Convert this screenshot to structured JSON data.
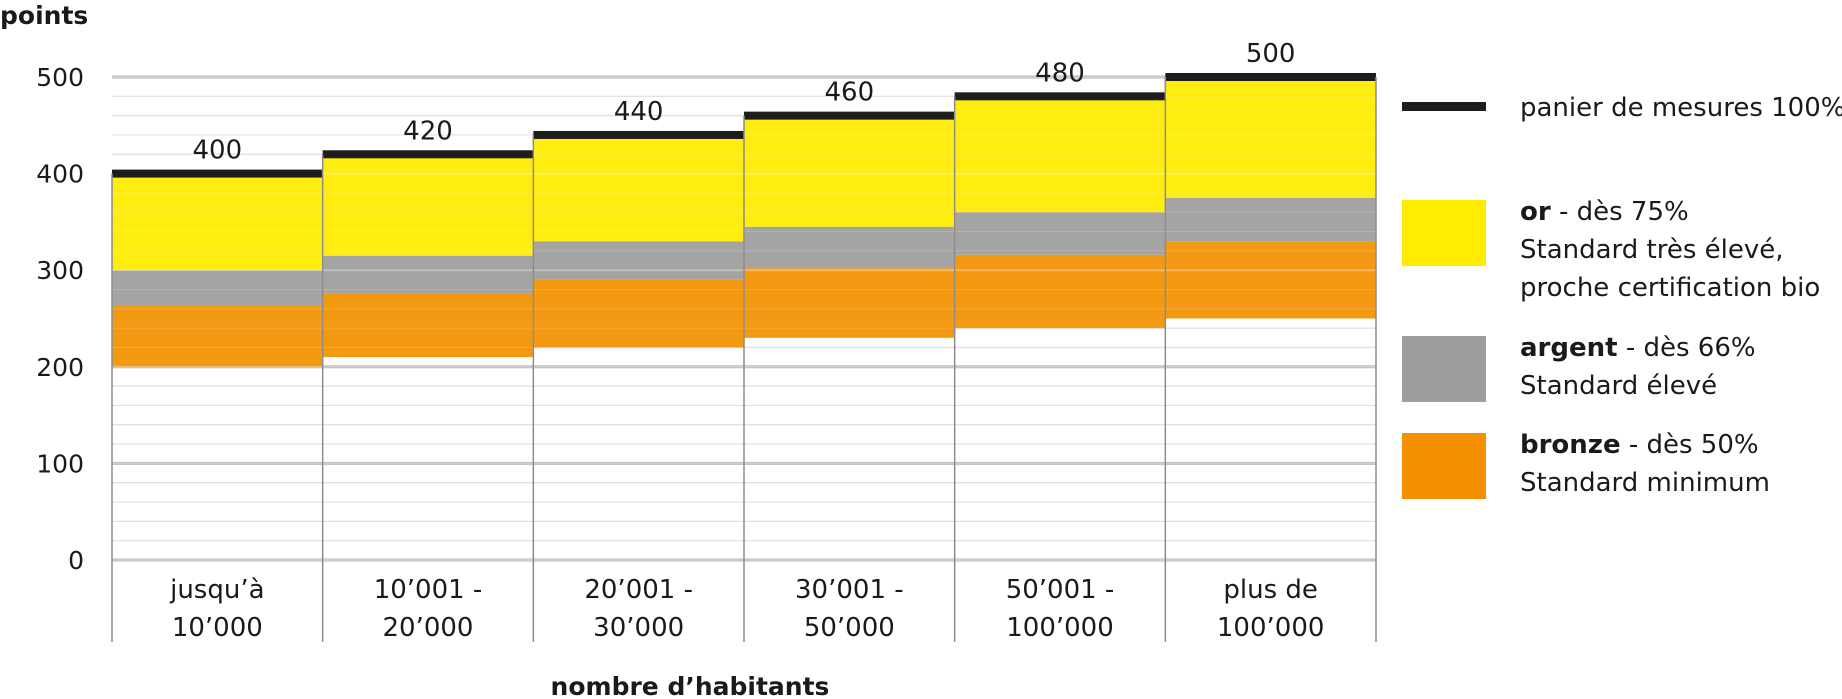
{
  "chart_data": {
    "type": "bar",
    "title": "",
    "ylabel": "points",
    "xlabel": "nombre d’habitants",
    "ylim": [
      0,
      500
    ],
    "yticks": [
      0,
      100,
      200,
      300,
      400,
      500
    ],
    "grid": true,
    "legend_position": "right",
    "categories": [
      {
        "line1": "jusqu’à",
        "line2": "10’000"
      },
      {
        "line1": "10’001 -",
        "line2": "20’000"
      },
      {
        "line1": "20’001 -",
        "line2": "30’000"
      },
      {
        "line1": "30’001 -",
        "line2": "50’000"
      },
      {
        "line1": "50’001 -",
        "line2": "100’000"
      },
      {
        "line1": "plus de",
        "line2": "100’000"
      }
    ],
    "totals": [
      400,
      420,
      440,
      460,
      480,
      500
    ],
    "series": [
      {
        "key": "bronze",
        "start": [
          200,
          210,
          220,
          230,
          240,
          250
        ],
        "end": [
          264,
          276,
          290,
          302,
          316,
          330
        ]
      },
      {
        "key": "argent",
        "start": [
          264,
          276,
          290,
          302,
          316,
          330
        ],
        "end": [
          300,
          315,
          330,
          345,
          360,
          375
        ]
      },
      {
        "key": "or",
        "start": [
          300,
          315,
          330,
          345,
          360,
          375
        ],
        "end": [
          400,
          420,
          440,
          460,
          480,
          500
        ]
      }
    ],
    "colors": {
      "or": "#ffec00",
      "argent": "#9d9d9c",
      "bronze": "#f39100",
      "panier": "#1d1d1b",
      "grid_major": "#b3b3b3",
      "grid_minor": "#d9d9d9",
      "divider": "#8c8c8c"
    },
    "legend": [
      {
        "key": "panier",
        "swatch": "line",
        "name": "",
        "suffix": "panier de mesures 100%",
        "line2": ""
      },
      {
        "key": "or",
        "swatch": "box",
        "name": "or",
        "suffix": " - dès 75%",
        "line2": "Standard très élevé,",
        "line3": "proche certification bio"
      },
      {
        "key": "argent",
        "swatch": "box",
        "name": "argent",
        "suffix": " - dès 66%",
        "line2": "Standard élevé",
        "line3": ""
      },
      {
        "key": "bronze",
        "swatch": "box",
        "name": "bronze",
        "suffix": " - dès 50%",
        "line2": "Standard minimum",
        "line3": ""
      }
    ]
  }
}
